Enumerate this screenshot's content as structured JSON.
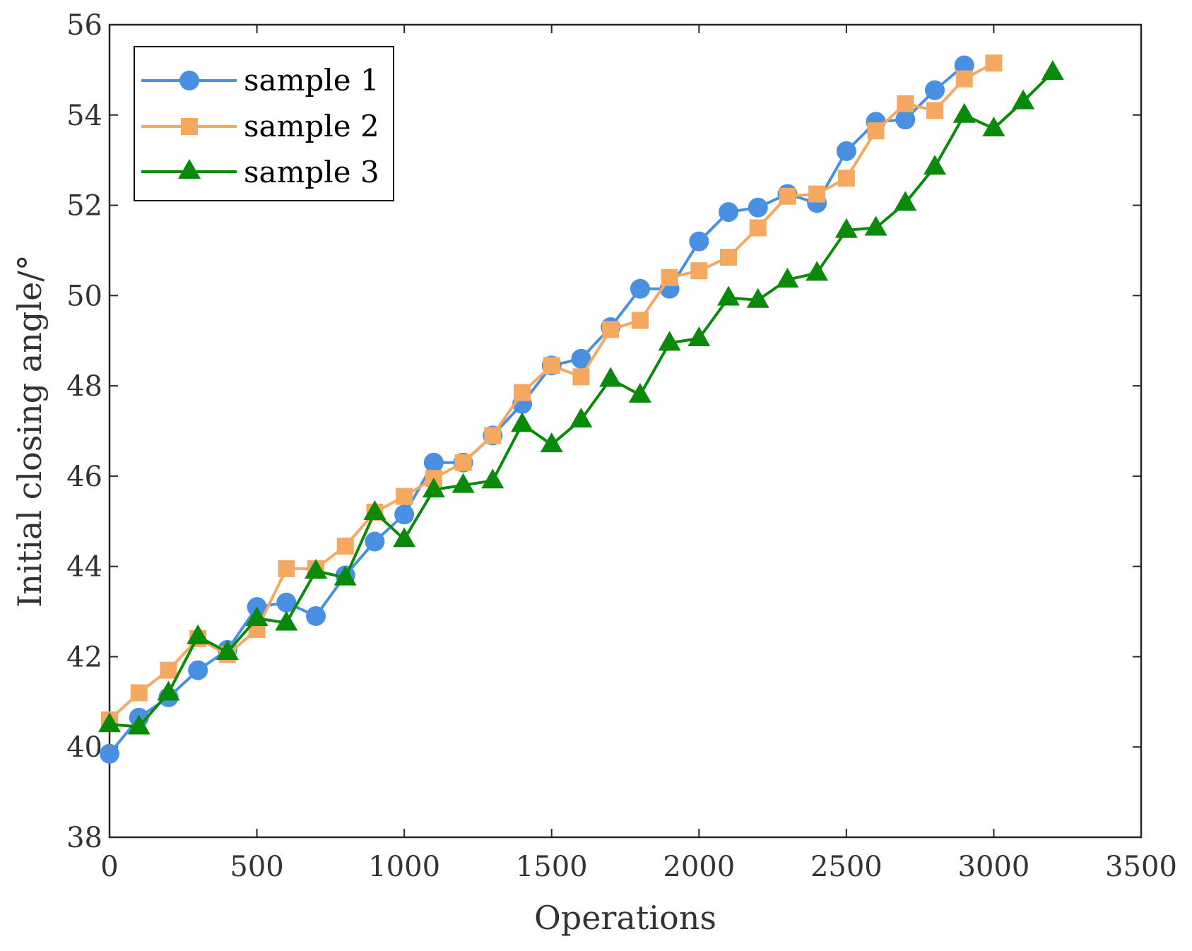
{
  "chart_data": {
    "type": "line",
    "title": "",
    "xlabel": "Operations",
    "ylabel": "Initial closing angle/°",
    "xlim": [
      0,
      3500
    ],
    "ylim": [
      38,
      56
    ],
    "xticks": [
      0,
      500,
      1000,
      1500,
      2000,
      2500,
      3000,
      3500
    ],
    "yticks": [
      38,
      40,
      42,
      44,
      46,
      48,
      50,
      52,
      54,
      56
    ],
    "grid": false,
    "legend_position": "top-left",
    "series": [
      {
        "name": "sample 1",
        "color": "#4a90e2",
        "marker": "circle",
        "x": [
          0,
          100,
          200,
          300,
          400,
          500,
          600,
          700,
          800,
          900,
          1000,
          1100,
          1200,
          1300,
          1400,
          1500,
          1600,
          1700,
          1800,
          1900,
          2000,
          2100,
          2200,
          2300,
          2400,
          2500,
          2600,
          2700,
          2800,
          2900
        ],
        "y": [
          39.85,
          40.65,
          41.1,
          41.7,
          42.15,
          43.1,
          43.2,
          42.9,
          43.8,
          44.55,
          45.15,
          46.3,
          46.3,
          46.9,
          47.6,
          48.45,
          48.6,
          49.3,
          50.15,
          50.15,
          51.2,
          51.85,
          51.95,
          52.25,
          52.05,
          53.2,
          53.85,
          53.9,
          54.55,
          55.1
        ]
      },
      {
        "name": "sample 2",
        "color": "#f5a860",
        "marker": "square",
        "x": [
          0,
          100,
          200,
          300,
          400,
          500,
          600,
          700,
          800,
          900,
          1000,
          1100,
          1200,
          1300,
          1400,
          1500,
          1600,
          1700,
          1800,
          1900,
          2000,
          2100,
          2200,
          2300,
          2400,
          2500,
          2600,
          2700,
          2800,
          2900,
          3000
        ],
        "y": [
          40.6,
          41.2,
          41.7,
          42.4,
          42.05,
          42.6,
          43.95,
          43.95,
          44.45,
          45.2,
          45.55,
          45.95,
          46.3,
          46.9,
          47.85,
          48.45,
          48.2,
          49.25,
          49.45,
          50.4,
          50.55,
          50.85,
          51.5,
          52.2,
          52.25,
          52.6,
          53.65,
          54.25,
          54.1,
          54.8,
          55.15
        ]
      },
      {
        "name": "sample 3",
        "color": "#0a8a0a",
        "marker": "triangle",
        "x": [
          0,
          100,
          200,
          300,
          400,
          500,
          600,
          700,
          800,
          900,
          1000,
          1100,
          1200,
          1300,
          1400,
          1500,
          1600,
          1700,
          1800,
          1900,
          2000,
          2100,
          2200,
          2300,
          2400,
          2500,
          2600,
          2700,
          2800,
          2900,
          3000,
          3100,
          3200
        ],
        "y": [
          40.5,
          40.45,
          41.2,
          42.45,
          42.1,
          42.85,
          42.75,
          43.9,
          43.75,
          45.2,
          44.6,
          45.7,
          45.8,
          45.9,
          47.15,
          46.7,
          47.25,
          48.15,
          47.8,
          48.95,
          49.05,
          49.95,
          49.9,
          50.35,
          50.5,
          51.45,
          51.5,
          52.05,
          52.85,
          54.0,
          53.7,
          54.3,
          54.95
        ]
      }
    ]
  }
}
